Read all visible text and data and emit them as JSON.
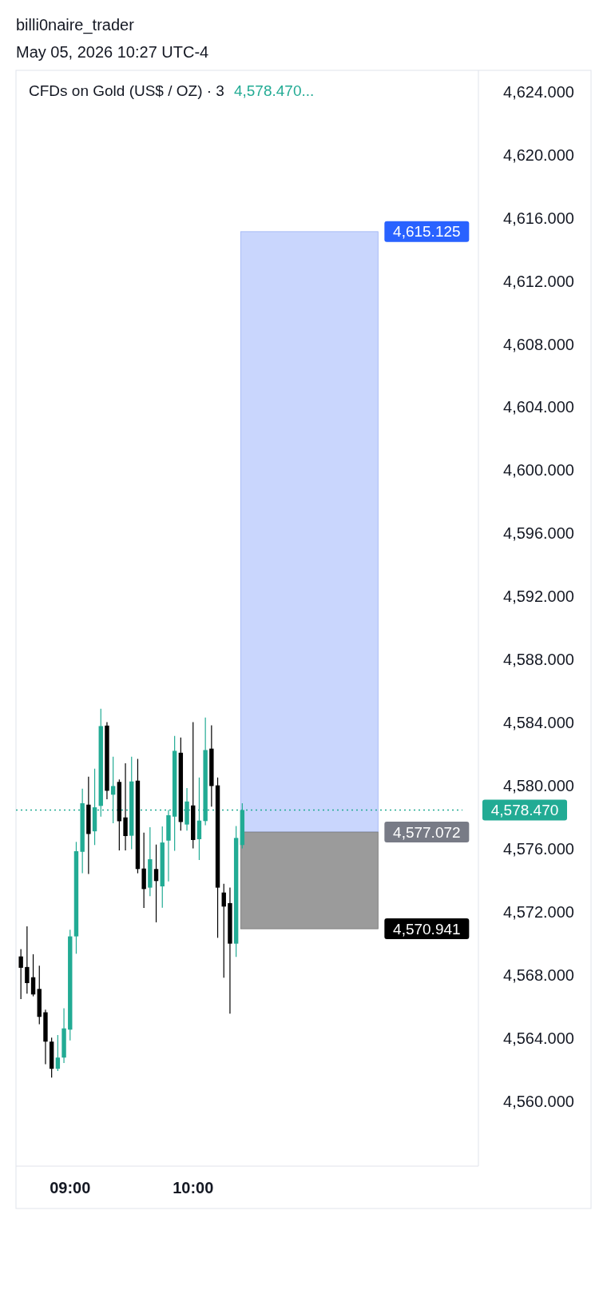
{
  "chart_data": {
    "type": "candlestick",
    "title": "CFDs on Gold (US$ / OZ) · 3",
    "subtitle": "4,578.470...",
    "annotations": [
      "billi0naire_trader",
      "May 05, 2026 10:27 UTC-4",
      "4,577.072"
    ],
    "x": [
      8.6,
      8.65,
      8.7,
      8.75,
      8.8,
      8.85,
      8.9,
      8.95,
      9,
      9.05,
      9.1,
      9.15,
      9.2,
      9.25,
      9.3,
      9.35,
      9.4,
      9.45,
      9.5,
      9.55,
      9.6,
      9.65,
      9.7,
      9.75,
      9.8,
      9.85,
      9.9,
      9.95,
      10,
      10.05,
      10.1,
      10.15,
      10.2,
      10.25,
      10.3,
      10.35,
      10.4
    ],
    "ohlc": [
      [
        4569.19,
        4569.65,
        4566.49,
        4568.47
      ],
      [
        4568.52,
        4571.1,
        4566.83,
        4567.5
      ],
      [
        4567.87,
        4569.33,
        4566.66,
        4566.78
      ],
      [
        4567.13,
        4568.6,
        4564.89,
        4565.36
      ],
      [
        4565.65,
        4565.82,
        4562.36,
        4563.79
      ],
      [
        4563.79,
        4564.04,
        4561.51,
        4562.07
      ],
      [
        4562.07,
        4564.21,
        4561.93,
        4562.78
      ],
      [
        4562.78,
        4565.9,
        4562.44,
        4564.63
      ],
      [
        4564.55,
        4570.88,
        4563.87,
        4570.46
      ],
      [
        4570.46,
        4576.45,
        4569.36,
        4575.86
      ],
      [
        4575.82,
        4579.82,
        4574.46,
        4578.9
      ],
      [
        4578.81,
        4580.58,
        4574.42,
        4576.95
      ],
      [
        4577.12,
        4581.09,
        4576.25,
        4578.64
      ],
      [
        4578.73,
        4584.89,
        4578.05,
        4583.79
      ],
      [
        4583.82,
        4584.04,
        4579.15,
        4579.69
      ],
      [
        4579.44,
        4581.85,
        4577.63,
        4579.99
      ],
      [
        4580.25,
        4580.41,
        4575.91,
        4577.76
      ],
      [
        4578.0,
        4581.43,
        4575.91,
        4576.82
      ],
      [
        4576.84,
        4581.85,
        4575.98,
        4580.28
      ],
      [
        4580.33,
        4581.71,
        4574.46,
        4574.73
      ],
      [
        4574.76,
        4577.04,
        4572.26,
        4573.46
      ],
      [
        4573.55,
        4577.38,
        4573.01,
        4575.35
      ],
      [
        4574.73,
        4576.28,
        4571.35,
        4573.97
      ],
      [
        4573.63,
        4577.43,
        4572.28,
        4576.41
      ],
      [
        4576.53,
        4578.47,
        4573.95,
        4578.14
      ],
      [
        4578.05,
        4583.17,
        4575.89,
        4582.22
      ],
      [
        4582.1,
        4583.06,
        4577.16,
        4577.71
      ],
      [
        4577.55,
        4579.86,
        4577.16,
        4579.01
      ],
      [
        4578.76,
        4584.04,
        4576.03,
        4576.57
      ],
      [
        4576.62,
        4580.53,
        4575.3,
        4577.8
      ],
      [
        4577.77,
        4584.33,
        4577.51,
        4582.27
      ],
      [
        4582.36,
        4583.84,
        4578.68,
        4579.99
      ],
      [
        4580.03,
        4580.53,
        4570.37,
        4573.55
      ],
      [
        4573.24,
        4573.8,
        4567.84,
        4572.35
      ],
      [
        4572.57,
        4573.55,
        4565.56,
        4570.0
      ],
      [
        4570.0,
        4577.46,
        4569.16,
        4576.7
      ],
      [
        4576.25,
        4578.9,
        4576.03,
        4578.47
      ]
    ],
    "colors": [
      "#000000",
      "#000000",
      "#000000",
      "#000000",
      "#000000",
      "#000000",
      "#22ab94",
      "#22ab94",
      "#22ab94",
      "#22ab94",
      "#22ab94",
      "#000000",
      "#22ab94",
      "#22ab94",
      "#000000",
      "#22ab94",
      "#000000",
      "#000000",
      "#22ab94",
      "#000000",
      "#000000",
      "#22ab94",
      "#000000",
      "#22ab94",
      "#22ab94",
      "#22ab94",
      "#000000",
      "#22ab94",
      "#000000",
      "#22ab94",
      "#22ab94",
      "#000000",
      "#000000",
      "#000000",
      "#000000",
      "#22ab94",
      "#22ab94"
    ],
    "xlim": [
      8.56,
      12.32
    ],
    "xticks": [
      {
        "value": 9,
        "label": "09:00"
      },
      {
        "value": 10,
        "label": "10:00"
      }
    ],
    "ylim": [
      4555.9,
      4625.35
    ],
    "yticks": [
      {
        "value": 4560,
        "label": "4,560.000"
      },
      {
        "value": 4564,
        "label": "4,564.000"
      },
      {
        "value": 4568,
        "label": "4,568.000"
      },
      {
        "value": 4572,
        "label": "4,572.000"
      },
      {
        "value": 4576,
        "label": "4,576.000"
      },
      {
        "value": 4580,
        "label": "4,580.000"
      },
      {
        "value": 4584,
        "label": "4,584.000"
      },
      {
        "value": 4588,
        "label": "4,588.000"
      },
      {
        "value": 4592,
        "label": "4,592.000"
      },
      {
        "value": 4596,
        "label": "4,596.000"
      },
      {
        "value": 4600,
        "label": "4,600.000"
      },
      {
        "value": 4604,
        "label": "4,604.000"
      },
      {
        "value": 4608,
        "label": "4,608.000"
      },
      {
        "value": 4612,
        "label": "4,612.000"
      },
      {
        "value": 4616,
        "label": "4,616.000"
      },
      {
        "value": 4620,
        "label": "4,620.000"
      },
      {
        "value": 4624,
        "label": "4,624.000"
      }
    ],
    "bands": [
      {
        "axis": "y",
        "from": 4577.072,
        "to": 4615.125,
        "label": "4,615.125",
        "color": "#c9d6fd"
      },
      {
        "axis": "y",
        "from": 4570.941,
        "to": 4577.072,
        "label": "4,570.941",
        "color": "#9b9b9b"
      }
    ],
    "ref_lines": [
      {
        "axis": "y",
        "value": 4578.47,
        "label": "4,578.470",
        "color": "#22ab94",
        "line_style": "dotted"
      }
    ],
    "grid": false
  }
}
